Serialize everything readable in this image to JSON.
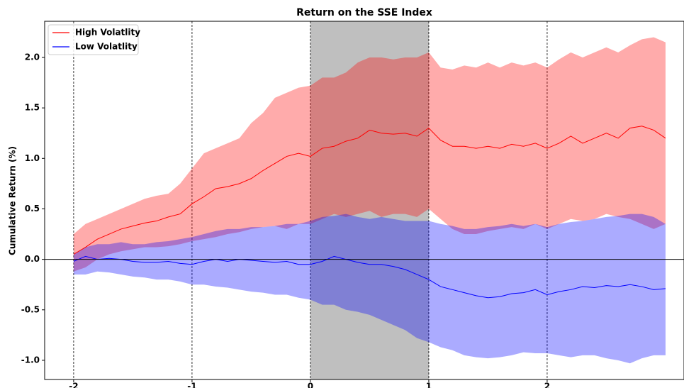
{
  "chart_data": {
    "type": "line",
    "title": "Return on the SSE Index",
    "y_label": "Cumulative Return (%)",
    "x": [
      -2.0,
      -1.9,
      -1.8,
      -1.7,
      -1.6,
      -1.5,
      -1.4,
      -1.3,
      -1.2,
      -1.1,
      -1.0,
      -0.9,
      -0.8,
      -0.7,
      -0.6,
      -0.5,
      -0.4,
      -0.3,
      -0.2,
      -0.1,
      0.0,
      0.1,
      0.2,
      0.3,
      0.4,
      0.5,
      0.6,
      0.7,
      0.8,
      0.9,
      1.0,
      1.1,
      1.2,
      1.3,
      1.4,
      1.5,
      1.6,
      1.7,
      1.8,
      1.9,
      2.0,
      2.1,
      2.2,
      2.3,
      2.4,
      2.5,
      2.6,
      2.7,
      2.8,
      2.9,
      3.0
    ],
    "series": [
      {
        "name": "High Volatlity",
        "color": "#ff0000",
        "values": [
          0.05,
          0.12,
          0.2,
          0.25,
          0.3,
          0.33,
          0.36,
          0.38,
          0.42,
          0.45,
          0.55,
          0.62,
          0.7,
          0.72,
          0.75,
          0.8,
          0.88,
          0.95,
          1.02,
          1.05,
          1.02,
          1.1,
          1.12,
          1.17,
          1.2,
          1.28,
          1.25,
          1.24,
          1.25,
          1.22,
          1.3,
          1.18,
          1.12,
          1.12,
          1.1,
          1.12,
          1.1,
          1.14,
          1.12,
          1.15,
          1.1,
          1.15,
          1.22,
          1.15,
          1.2,
          1.25,
          1.2,
          1.3,
          1.32,
          1.28,
          1.2
        ],
        "upper": [
          0.25,
          0.35,
          0.4,
          0.45,
          0.5,
          0.55,
          0.6,
          0.63,
          0.65,
          0.75,
          0.9,
          1.05,
          1.1,
          1.15,
          1.2,
          1.35,
          1.45,
          1.6,
          1.65,
          1.7,
          1.72,
          1.8,
          1.8,
          1.85,
          1.95,
          2.0,
          2.0,
          1.98,
          2.0,
          2.0,
          2.05,
          1.9,
          1.88,
          1.92,
          1.9,
          1.95,
          1.9,
          1.95,
          1.92,
          1.95,
          1.9,
          1.98,
          2.05,
          2.0,
          2.05,
          2.1,
          2.05,
          2.12,
          2.18,
          2.2,
          2.15
        ],
        "lower": [
          -0.12,
          -0.08,
          0.0,
          0.05,
          0.08,
          0.1,
          0.12,
          0.12,
          0.13,
          0.15,
          0.18,
          0.2,
          0.22,
          0.25,
          0.27,
          0.3,
          0.32,
          0.33,
          0.3,
          0.35,
          0.35,
          0.4,
          0.45,
          0.42,
          0.45,
          0.48,
          0.42,
          0.45,
          0.45,
          0.42,
          0.5,
          0.4,
          0.3,
          0.25,
          0.25,
          0.28,
          0.3,
          0.32,
          0.3,
          0.35,
          0.3,
          0.35,
          0.4,
          0.38,
          0.4,
          0.45,
          0.42,
          0.4,
          0.35,
          0.3,
          0.35
        ]
      },
      {
        "name": "Low Volatlity",
        "color": "#0000ff",
        "values": [
          -0.02,
          0.03,
          0.0,
          0.01,
          0.0,
          -0.02,
          -0.03,
          -0.03,
          -0.02,
          -0.04,
          -0.05,
          -0.02,
          0.0,
          -0.02,
          0.0,
          -0.01,
          -0.02,
          -0.03,
          -0.02,
          -0.05,
          -0.05,
          -0.02,
          0.03,
          0.0,
          -0.03,
          -0.05,
          -0.05,
          -0.07,
          -0.1,
          -0.15,
          -0.2,
          -0.27,
          -0.3,
          -0.33,
          -0.36,
          -0.38,
          -0.37,
          -0.34,
          -0.33,
          -0.3,
          -0.35,
          -0.32,
          -0.3,
          -0.27,
          -0.28,
          -0.26,
          -0.27,
          -0.25,
          -0.27,
          -0.3,
          -0.29
        ],
        "upper": [
          0.05,
          0.12,
          0.15,
          0.15,
          0.17,
          0.15,
          0.15,
          0.17,
          0.18,
          0.2,
          0.22,
          0.25,
          0.28,
          0.3,
          0.3,
          0.32,
          0.32,
          0.33,
          0.35,
          0.35,
          0.38,
          0.42,
          0.43,
          0.45,
          0.42,
          0.4,
          0.42,
          0.4,
          0.38,
          0.38,
          0.38,
          0.35,
          0.33,
          0.3,
          0.3,
          0.32,
          0.33,
          0.35,
          0.33,
          0.35,
          0.32,
          0.35,
          0.37,
          0.38,
          0.4,
          0.42,
          0.43,
          0.45,
          0.45,
          0.42,
          0.35
        ],
        "lower": [
          -0.15,
          -0.15,
          -0.12,
          -0.13,
          -0.15,
          -0.17,
          -0.18,
          -0.2,
          -0.2,
          -0.22,
          -0.25,
          -0.25,
          -0.27,
          -0.28,
          -0.3,
          -0.32,
          -0.33,
          -0.35,
          -0.35,
          -0.38,
          -0.4,
          -0.45,
          -0.45,
          -0.5,
          -0.52,
          -0.55,
          -0.6,
          -0.65,
          -0.7,
          -0.78,
          -0.82,
          -0.87,
          -0.9,
          -0.95,
          -0.97,
          -0.98,
          -0.97,
          -0.95,
          -0.92,
          -0.93,
          -0.93,
          -0.95,
          -0.97,
          -0.95,
          -0.95,
          -0.98,
          -1.0,
          -1.03,
          -0.98,
          -0.95,
          -0.95
        ]
      }
    ],
    "xlim": [
      -2.245,
      3.156
    ],
    "ylim": [
      -1.19,
      2.358
    ],
    "xticks": [
      -2,
      -1,
      0,
      1,
      2
    ],
    "yticks": [
      {
        "value": -1,
        "label": "-1.0"
      },
      -0.5,
      {
        "value": 0,
        "label": "0.0"
      },
      0.5,
      {
        "value": 1,
        "label": "1.0"
      },
      1.5,
      {
        "value": 2,
        "label": "2.0"
      }
    ],
    "vlines": [
      -2,
      -1,
      0,
      1,
      2
    ],
    "hline": 0,
    "shaded_span": [
      0,
      1
    ],
    "shaded_color": "#808080",
    "band_opacity": 0.33,
    "legend": "upper left"
  }
}
